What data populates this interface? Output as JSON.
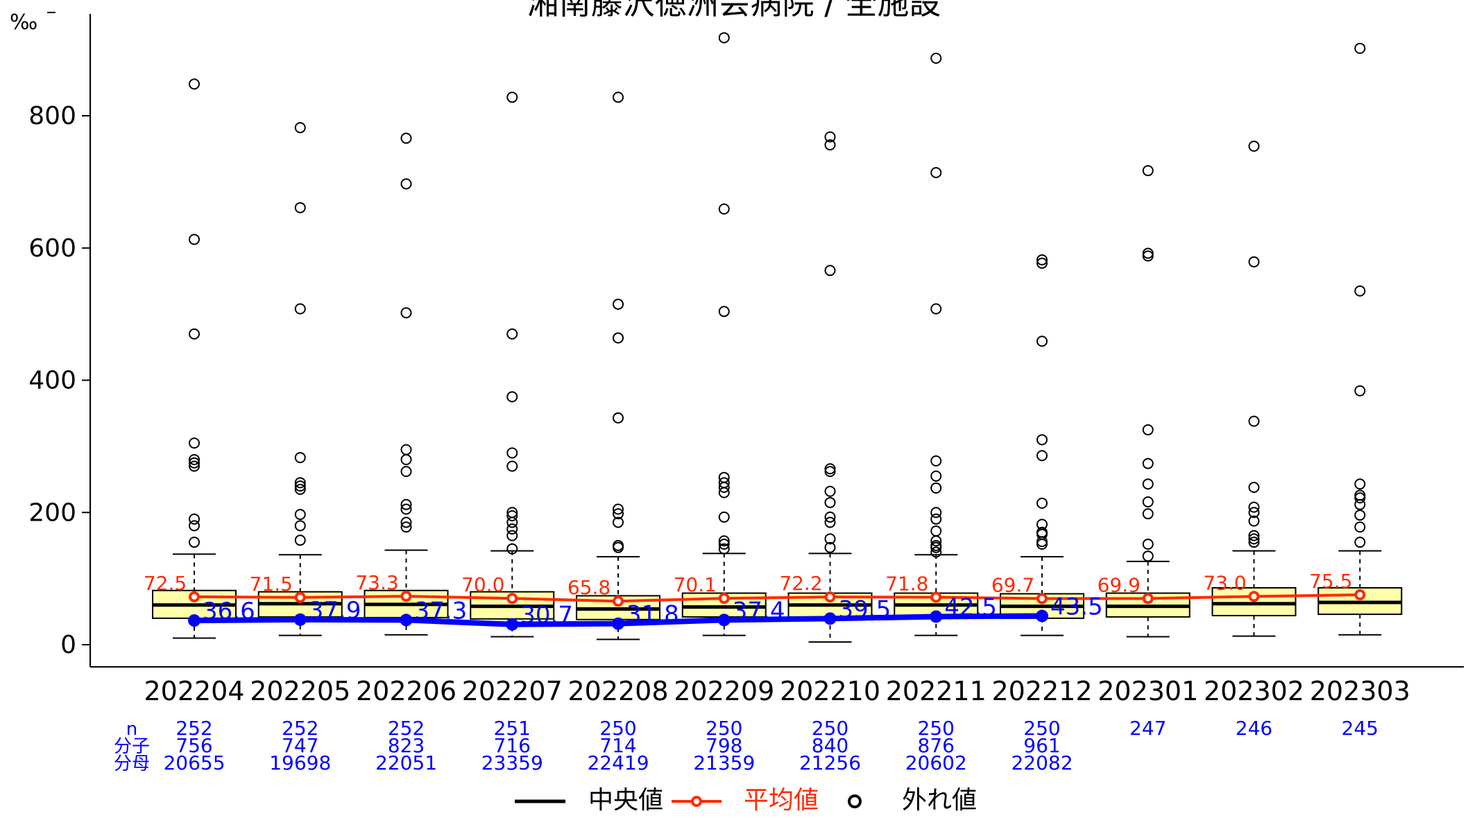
{
  "chart_data": {
    "type": "box",
    "title": "湘南藤沢徳洲会病院 / 全施設",
    "y_unit": "‰",
    "ylim": [
      0,
      900
    ],
    "y_ticks": [
      0,
      200,
      400,
      600,
      800
    ],
    "categories": [
      "202204",
      "202205",
      "202206",
      "202207",
      "202208",
      "202209",
      "202210",
      "202211",
      "202212",
      "202301",
      "202302",
      "202303"
    ],
    "boxes": [
      {
        "whisker_low": 10,
        "q1": 40,
        "median": 60,
        "q3": 82,
        "whisker_high": 137,
        "outliers": [
          155,
          180,
          190,
          270,
          275,
          280,
          305,
          470,
          613,
          848
        ]
      },
      {
        "whisker_low": 14,
        "q1": 42,
        "median": 62,
        "q3": 80,
        "whisker_high": 136,
        "outliers": [
          158,
          180,
          197,
          235,
          240,
          245,
          283,
          508,
          661,
          782
        ]
      },
      {
        "whisker_low": 15,
        "q1": 41,
        "median": 61,
        "q3": 82,
        "whisker_high": 143,
        "outliers": [
          178,
          185,
          205,
          212,
          262,
          280,
          295,
          502,
          697,
          766
        ]
      },
      {
        "whisker_low": 12,
        "q1": 39,
        "median": 58,
        "q3": 80,
        "whisker_high": 142,
        "outliers": [
          145,
          165,
          175,
          185,
          195,
          200,
          270,
          290,
          375,
          470,
          828
        ]
      },
      {
        "whisker_low": 8,
        "q1": 38,
        "median": 54,
        "q3": 74,
        "whisker_high": 133,
        "outliers": [
          147,
          150,
          185,
          198,
          205,
          343,
          464,
          515,
          828
        ]
      },
      {
        "whisker_low": 14,
        "q1": 42,
        "median": 57,
        "q3": 78,
        "whisker_high": 138,
        "outliers": [
          145,
          152,
          157,
          193,
          230,
          238,
          245,
          253,
          504,
          659,
          918
        ]
      },
      {
        "whisker_low": 4,
        "q1": 42,
        "median": 60,
        "q3": 78,
        "whisker_high": 138,
        "outliers": [
          147,
          160,
          185,
          193,
          215,
          232,
          262,
          266,
          566,
          756,
          768
        ]
      },
      {
        "whisker_low": 14,
        "q1": 44,
        "median": 60,
        "q3": 78,
        "whisker_high": 136,
        "outliers": [
          140,
          147,
          150,
          157,
          172,
          190,
          200,
          237,
          255,
          278,
          508,
          714,
          887
        ]
      },
      {
        "whisker_low": 14,
        "q1": 40,
        "median": 58,
        "q3": 77,
        "whisker_high": 133,
        "outliers": [
          152,
          156,
          167,
          170,
          182,
          214,
          286,
          310,
          459,
          577,
          582
        ]
      },
      {
        "whisker_low": 12,
        "q1": 42,
        "median": 58,
        "q3": 78,
        "whisker_high": 126,
        "outliers": [
          134,
          152,
          198,
          216,
          243,
          274,
          325,
          588,
          592,
          717
        ]
      },
      {
        "whisker_low": 13,
        "q1": 44,
        "median": 62,
        "q3": 86,
        "whisker_high": 142,
        "outliers": [
          155,
          160,
          165,
          187,
          200,
          208,
          238,
          338,
          579,
          754
        ]
      },
      {
        "whisker_low": 15,
        "q1": 46,
        "median": 64,
        "q3": 86,
        "whisker_high": 142,
        "outliers": [
          155,
          178,
          196,
          212,
          222,
          226,
          243,
          384,
          535,
          902
        ]
      }
    ],
    "series": [
      {
        "name": "平均値",
        "color": "#ff2a00",
        "values": [
          72.5,
          71.5,
          73.3,
          70.0,
          65.8,
          70.1,
          72.2,
          71.8,
          69.7,
          69.9,
          73.0,
          75.5
        ],
        "labels": [
          "72.5",
          "71.5",
          "73.3",
          "70.0",
          "65.8",
          "70.1",
          "72.2",
          "71.8",
          "69.7",
          "69.9",
          "73.0",
          "75.5"
        ]
      },
      {
        "color": "#0000ff",
        "values": [
          36.6,
          37.9,
          37.3,
          30.7,
          31.8,
          37.4,
          39.5,
          42.5,
          43.5
        ],
        "labels": [
          "36.6",
          "37.9",
          "37.3",
          "30.7",
          "31.8",
          "37.4",
          "39.5",
          "42.5",
          "43.5"
        ]
      }
    ],
    "bottom_table": {
      "row_labels": [
        "n",
        "分子",
        "分母"
      ],
      "n": [
        "252",
        "252",
        "252",
        "251",
        "250",
        "250",
        "250",
        "250",
        "250",
        "247",
        "246",
        "245"
      ],
      "numerator": [
        "756",
        "747",
        "823",
        "716",
        "714",
        "798",
        "840",
        "876",
        "961"
      ],
      "denominator": [
        "20655",
        "19698",
        "22051",
        "23359",
        "22419",
        "21359",
        "21256",
        "20602",
        "22082"
      ]
    },
    "legend": {
      "placement": "bottom-center",
      "items": [
        {
          "label": "中央値",
          "color": "#000000"
        },
        {
          "label": "平均値",
          "color": "#ff2a00"
        },
        {
          "label": "外れ値",
          "color": "#000000"
        }
      ]
    },
    "colors": {
      "box_fill": "#ffffaa",
      "hospital_line": "#0000ff",
      "mean_line": "#ff2a00",
      "table_text": "#0000ff"
    }
  }
}
